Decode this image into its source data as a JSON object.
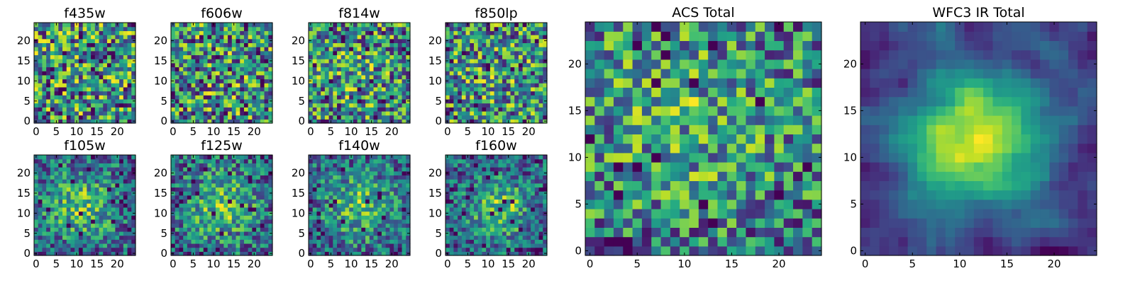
{
  "chart_data": [
    {
      "type": "heatmap",
      "title": "f435w",
      "grid_size": 25,
      "xticks": [
        0,
        5,
        10,
        15,
        20
      ],
      "yticks": [
        0,
        5,
        10,
        15,
        20
      ],
      "colormap": "viridis",
      "pattern": "noise",
      "seed": 11,
      "center": [
        12,
        12
      ],
      "spread": 7,
      "peak": 0.0
    },
    {
      "type": "heatmap",
      "title": "f606w",
      "grid_size": 25,
      "xticks": [
        0,
        5,
        10,
        15,
        20
      ],
      "yticks": [
        0,
        5,
        10,
        15,
        20
      ],
      "colormap": "viridis",
      "pattern": "noise",
      "seed": 23,
      "center": [
        12,
        12
      ],
      "spread": 7,
      "peak": 0.05
    },
    {
      "type": "heatmap",
      "title": "f814w",
      "grid_size": 25,
      "xticks": [
        0,
        5,
        10,
        15,
        20
      ],
      "yticks": [
        0,
        5,
        10,
        15,
        20
      ],
      "colormap": "viridis",
      "pattern": "noise",
      "seed": 37,
      "center": [
        11,
        13
      ],
      "spread": 7,
      "peak": 0.1
    },
    {
      "type": "heatmap",
      "title": "f850lp",
      "grid_size": 25,
      "xticks": [
        0,
        5,
        10,
        15,
        20
      ],
      "yticks": [
        0,
        5,
        10,
        15,
        20
      ],
      "colormap": "viridis",
      "pattern": "noise",
      "seed": 41,
      "center": [
        12,
        12
      ],
      "spread": 7,
      "peak": 0.08
    },
    {
      "type": "heatmap",
      "title": "f105w",
      "grid_size": 25,
      "xticks": [
        0,
        5,
        10,
        15,
        20
      ],
      "yticks": [
        0,
        5,
        10,
        15,
        20
      ],
      "colormap": "viridis",
      "pattern": "blob",
      "seed": 53,
      "center": [
        11,
        12
      ],
      "spread": 6,
      "peak": 0.35
    },
    {
      "type": "heatmap",
      "title": "f125w",
      "grid_size": 25,
      "xticks": [
        0,
        5,
        10,
        15,
        20
      ],
      "yticks": [
        0,
        5,
        10,
        15,
        20
      ],
      "colormap": "viridis",
      "pattern": "blob",
      "seed": 67,
      "center": [
        12,
        12
      ],
      "spread": 6,
      "peak": 0.35
    },
    {
      "type": "heatmap",
      "title": "f140w",
      "grid_size": 25,
      "xticks": [
        0,
        5,
        10,
        15,
        20
      ],
      "yticks": [
        0,
        5,
        10,
        15,
        20
      ],
      "colormap": "viridis",
      "pattern": "blob",
      "seed": 79,
      "center": [
        12,
        12
      ],
      "spread": 6,
      "peak": 0.35
    },
    {
      "type": "heatmap",
      "title": "f160w",
      "grid_size": 25,
      "xticks": [
        0,
        5,
        10,
        15,
        20
      ],
      "yticks": [
        0,
        5,
        10,
        15,
        20
      ],
      "colormap": "viridis",
      "pattern": "blob",
      "seed": 83,
      "center": [
        13,
        11
      ],
      "spread": 5,
      "peak": 0.4
    },
    {
      "type": "heatmap",
      "title": "ACS Total",
      "grid_size": 25,
      "xticks": [
        0,
        5,
        10,
        15,
        20
      ],
      "yticks": [
        0,
        5,
        10,
        15,
        20
      ],
      "colormap": "viridis",
      "pattern": "blob",
      "seed": 97,
      "center": [
        10,
        15
      ],
      "spread": 8,
      "peak": 0.2
    },
    {
      "type": "heatmap",
      "title": "WFC3 IR Total",
      "grid_size": 25,
      "xticks": [
        0,
        5,
        10,
        15,
        20
      ],
      "yticks": [
        0,
        5,
        10,
        15,
        20
      ],
      "colormap": "viridis",
      "pattern": "smooth",
      "seed": 101,
      "center": [
        12,
        12
      ],
      "spread": 5,
      "peak": 0.55
    }
  ]
}
